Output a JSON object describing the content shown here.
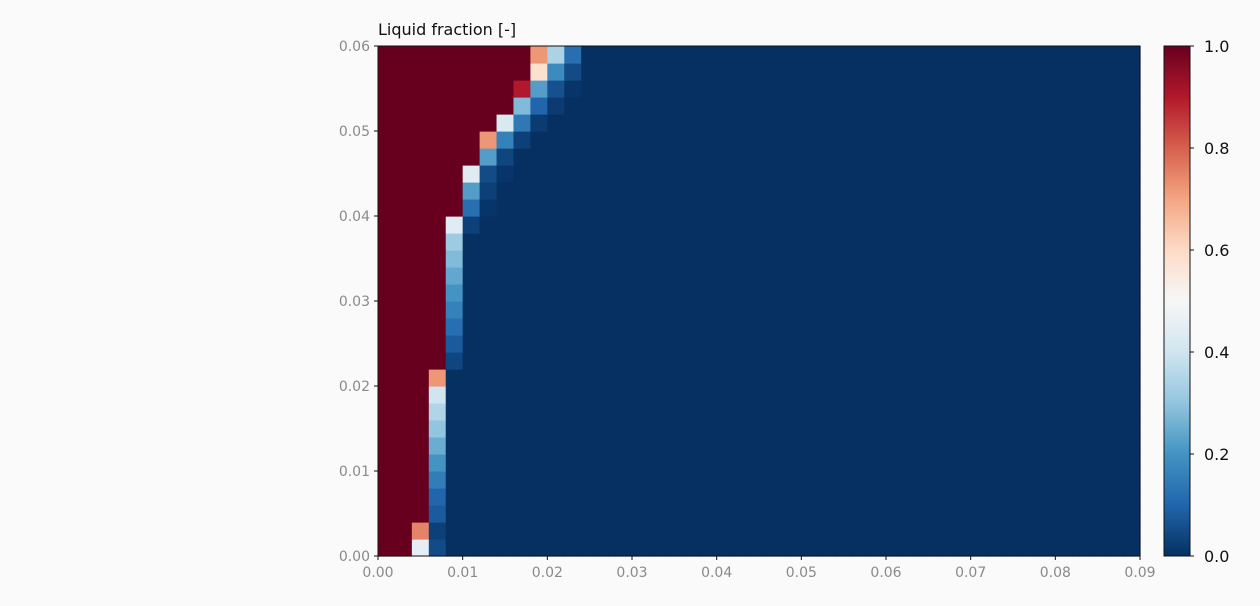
{
  "chart_data": {
    "type": "heatmap",
    "title": "Liquid fraction [-]",
    "xlabel": "",
    "ylabel": "",
    "xlim": [
      0.0,
      0.09
    ],
    "ylim": [
      0.0,
      0.06
    ],
    "x_ticks": [
      "0.00",
      "0.01",
      "0.02",
      "0.03",
      "0.04",
      "0.05",
      "0.06",
      "0.07",
      "0.08",
      "0.09"
    ],
    "y_ticks": [
      "0.00",
      "0.01",
      "0.02",
      "0.03",
      "0.04",
      "0.05",
      "0.06"
    ],
    "colorbar": {
      "range": [
        0.0,
        1.0
      ],
      "ticks": [
        "0.0",
        "0.2",
        "0.4",
        "0.6",
        "0.8",
        "1.0"
      ],
      "colormap": "RdBu_r"
    },
    "grid_shape": {
      "nx": 45,
      "ny": 30
    },
    "fill_value": 0.0,
    "front_cells": [
      {
        "row": 0,
        "cols": [
          1.0,
          1.0,
          0.45,
          0.05
        ]
      },
      {
        "row": 1,
        "cols": [
          1.0,
          1.0,
          0.75,
          0.03
        ]
      },
      {
        "row": 2,
        "cols": [
          1.0,
          1.0,
          1.0,
          0.08
        ]
      },
      {
        "row": 3,
        "cols": [
          1.0,
          1.0,
          1.0,
          0.1
        ]
      },
      {
        "row": 4,
        "cols": [
          1.0,
          1.0,
          1.0,
          0.15
        ]
      },
      {
        "row": 5,
        "cols": [
          1.0,
          1.0,
          1.0,
          0.2
        ]
      },
      {
        "row": 6,
        "cols": [
          1.0,
          1.0,
          1.0,
          0.25
        ]
      },
      {
        "row": 7,
        "cols": [
          1.0,
          1.0,
          1.0,
          0.3
        ]
      },
      {
        "row": 8,
        "cols": [
          1.0,
          1.0,
          1.0,
          0.35
        ]
      },
      {
        "row": 9,
        "cols": [
          1.0,
          1.0,
          1.0,
          0.4
        ]
      },
      {
        "row": 10,
        "cols": [
          1.0,
          1.0,
          1.0,
          0.72
        ]
      },
      {
        "row": 11,
        "cols": [
          1.0,
          1.0,
          1.0,
          1.0,
          0.04
        ]
      },
      {
        "row": 12,
        "cols": [
          1.0,
          1.0,
          1.0,
          1.0,
          0.08
        ]
      },
      {
        "row": 13,
        "cols": [
          1.0,
          1.0,
          1.0,
          1.0,
          0.12
        ]
      },
      {
        "row": 14,
        "cols": [
          1.0,
          1.0,
          1.0,
          1.0,
          0.16
        ]
      },
      {
        "row": 15,
        "cols": [
          1.0,
          1.0,
          1.0,
          1.0,
          0.2
        ]
      },
      {
        "row": 16,
        "cols": [
          1.0,
          1.0,
          1.0,
          1.0,
          0.24
        ]
      },
      {
        "row": 17,
        "cols": [
          1.0,
          1.0,
          1.0,
          1.0,
          0.28
        ]
      },
      {
        "row": 18,
        "cols": [
          1.0,
          1.0,
          1.0,
          1.0,
          0.32
        ]
      },
      {
        "row": 19,
        "cols": [
          1.0,
          1.0,
          1.0,
          1.0,
          0.44,
          0.03
        ]
      },
      {
        "row": 20,
        "cols": [
          1.0,
          1.0,
          1.0,
          1.0,
          1.0,
          0.12,
          0.01
        ]
      },
      {
        "row": 21,
        "cols": [
          1.0,
          1.0,
          1.0,
          1.0,
          1.0,
          0.22,
          0.03
        ]
      },
      {
        "row": 22,
        "cols": [
          1.0,
          1.0,
          1.0,
          1.0,
          1.0,
          0.44,
          0.05,
          0.01
        ]
      },
      {
        "row": 23,
        "cols": [
          1.0,
          1.0,
          1.0,
          1.0,
          1.0,
          1.0,
          0.22,
          0.04
        ]
      },
      {
        "row": 24,
        "cols": [
          1.0,
          1.0,
          1.0,
          1.0,
          1.0,
          1.0,
          0.72,
          0.16,
          0.03
        ]
      },
      {
        "row": 25,
        "cols": [
          1.0,
          1.0,
          1.0,
          1.0,
          1.0,
          1.0,
          1.0,
          0.42,
          0.14,
          0.02
        ]
      },
      {
        "row": 26,
        "cols": [
          1.0,
          1.0,
          1.0,
          1.0,
          1.0,
          1.0,
          1.0,
          1.0,
          0.28,
          0.1,
          0.02
        ]
      },
      {
        "row": 27,
        "cols": [
          1.0,
          1.0,
          1.0,
          1.0,
          1.0,
          1.0,
          1.0,
          1.0,
          0.9,
          0.22,
          0.06,
          0.01
        ]
      },
      {
        "row": 28,
        "cols": [
          1.0,
          1.0,
          1.0,
          1.0,
          1.0,
          1.0,
          1.0,
          1.0,
          1.0,
          0.58,
          0.18,
          0.05
        ]
      },
      {
        "row": 29,
        "cols": [
          1.0,
          1.0,
          1.0,
          1.0,
          1.0,
          1.0,
          1.0,
          1.0,
          1.0,
          0.72,
          0.34,
          0.12
        ]
      }
    ]
  }
}
